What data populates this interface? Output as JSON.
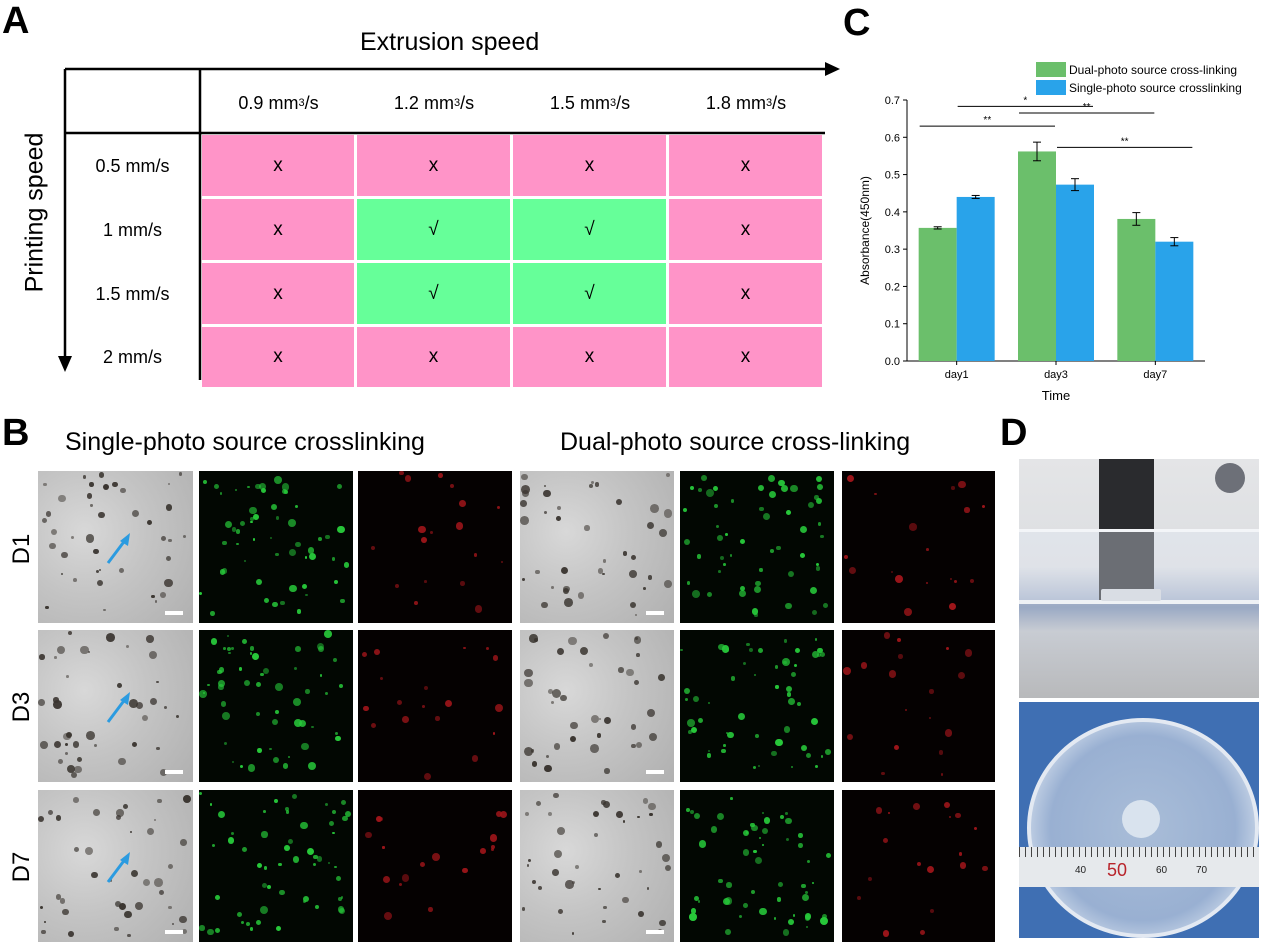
{
  "panels": {
    "a": "A",
    "b": "B",
    "c": "C",
    "d": "D"
  },
  "panel_a": {
    "x_axis_title": "Extrusion speed",
    "y_axis_title": "Printing speed",
    "extrusion_speeds": [
      {
        "num": "0.9 mm",
        "sup": "3",
        "unit": "/s"
      },
      {
        "num": "1.2 mm",
        "sup": "3",
        "unit": "/s"
      },
      {
        "num": "1.5 mm",
        "sup": "3",
        "unit": "/s"
      },
      {
        "num": "1.8 mm",
        "sup": "3",
        "unit": "/s"
      }
    ],
    "printing_speeds": [
      "0.5 mm/s",
      "1 mm/s",
      "1.5 mm/s",
      "2 mm/s"
    ],
    "cells": [
      [
        "x",
        "x",
        "x",
        "x"
      ],
      [
        "x",
        "√",
        "√",
        "x"
      ],
      [
        "x",
        "√",
        "√",
        "x"
      ],
      [
        "x",
        "x",
        "x",
        "x"
      ]
    ],
    "colors": {
      "fail": "#ff94c8",
      "pass": "#66ff99"
    }
  },
  "panel_b": {
    "left_title": "Single-photo source crosslinking",
    "right_title": "Dual-photo source cross-linking",
    "rows": [
      "D1",
      "D3",
      "D7"
    ],
    "arrow_color": "#2b9be0"
  },
  "chart_data": {
    "type": "bar",
    "categories": [
      "day1",
      "day3",
      "day7"
    ],
    "series": [
      {
        "name": "Dual-photo source cross-linking",
        "values": [
          0.357,
          0.562,
          0.381
        ],
        "errors": [
          0.003,
          0.025,
          0.017
        ],
        "color": "#6bbf6b"
      },
      {
        "name": "Single-photo source crosslinking",
        "values": [
          0.44,
          0.473,
          0.32
        ],
        "errors": [
          0.004,
          0.016,
          0.011
        ],
        "color": "#29a3ea"
      }
    ],
    "xlabel": "Time",
    "ylabel": "Absorbance(450nm)",
    "ylim": [
      0.0,
      0.7
    ],
    "yticks": [
      "0.0",
      "0.1",
      "0.2",
      "0.3",
      "0.4",
      "0.5",
      "0.6",
      "0.7"
    ],
    "legend_position": "top-right",
    "significance": [
      {
        "label": "**",
        "from": "day1 Dual-photo source cross-linking",
        "to": "day3 Dual-photo source cross-linking"
      },
      {
        "label": "*",
        "from": "day1 Single-photo source crosslinking",
        "to": "day3 Single-photo source crosslinking"
      },
      {
        "label": "**",
        "from": "day3 Dual-photo source cross-linking",
        "to": "day7 Dual-photo source cross-linking"
      },
      {
        "label": "**",
        "from": "day3 Single-photo source crosslinking",
        "to": "day7 Single-photo source crosslinking"
      }
    ]
  },
  "panel_d": {
    "ruler_labels": [
      "40",
      "50",
      "60",
      "70"
    ],
    "ruler_highlight": "50"
  }
}
